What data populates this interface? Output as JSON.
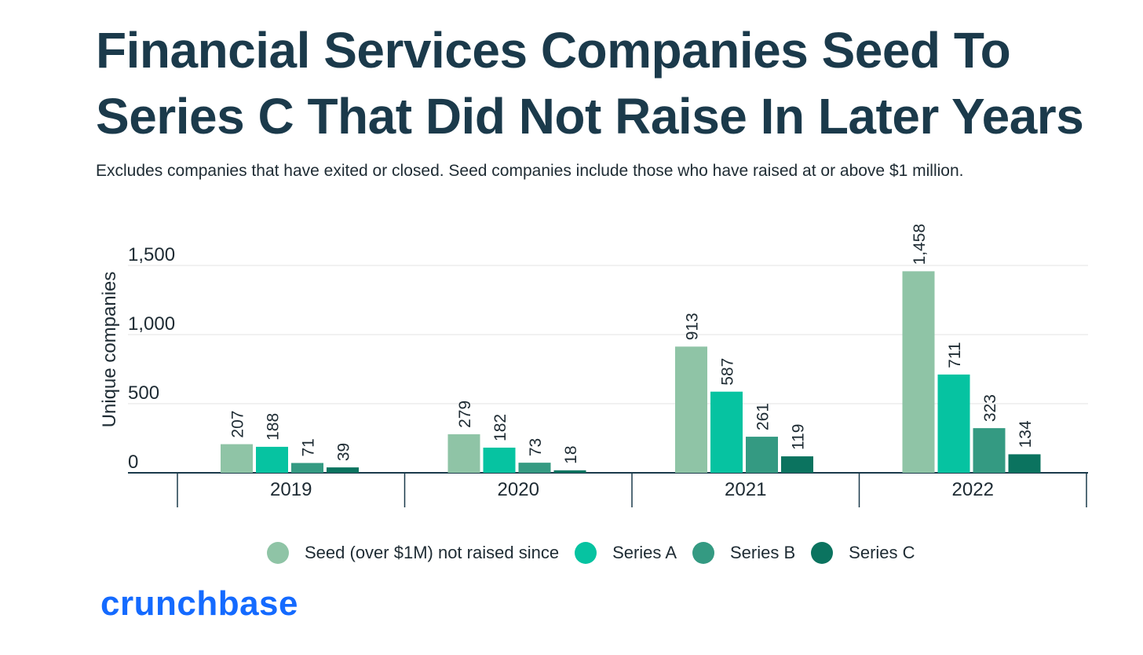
{
  "header": {
    "title_line1": "Financial Services Companies Seed To",
    "title_line2": "Series C That Did Not Raise In Later Years",
    "subtitle": "Excludes companies that have exited or closed. Seed companies include those who have raised at or above $1 million."
  },
  "chart_data": {
    "type": "bar",
    "categories": [
      "2019",
      "2020",
      "2021",
      "2022"
    ],
    "ylabel": "Unique companies",
    "ylim": [
      0,
      1500
    ],
    "yticks": [
      0,
      500,
      1000,
      1500
    ],
    "ytick_labels": [
      "0",
      "500",
      "1,000",
      "1,500"
    ],
    "grid": true,
    "legend_position": "bottom",
    "series": [
      {
        "name": "Seed (over $1M) not raised since",
        "values": [
          207,
          279,
          913,
          1458
        ],
        "labels": [
          "207",
          "279",
          "913",
          "1,458"
        ],
        "color": "#8fc4a6"
      },
      {
        "name": "Series A",
        "values": [
          188,
          182,
          587,
          711
        ],
        "labels": [
          "188",
          "182",
          "587",
          "711"
        ],
        "color": "#06c3a1"
      },
      {
        "name": "Series B",
        "values": [
          71,
          73,
          261,
          323
        ],
        "labels": [
          "71",
          "73",
          "261",
          "323"
        ],
        "color": "#349a82"
      },
      {
        "name": "Series C",
        "values": [
          39,
          18,
          119,
          134
        ],
        "labels": [
          "39",
          "18",
          "119",
          "134"
        ],
        "color": "#0b735f"
      }
    ]
  },
  "brand": {
    "name": "crunchbase",
    "color": "#146aff"
  }
}
